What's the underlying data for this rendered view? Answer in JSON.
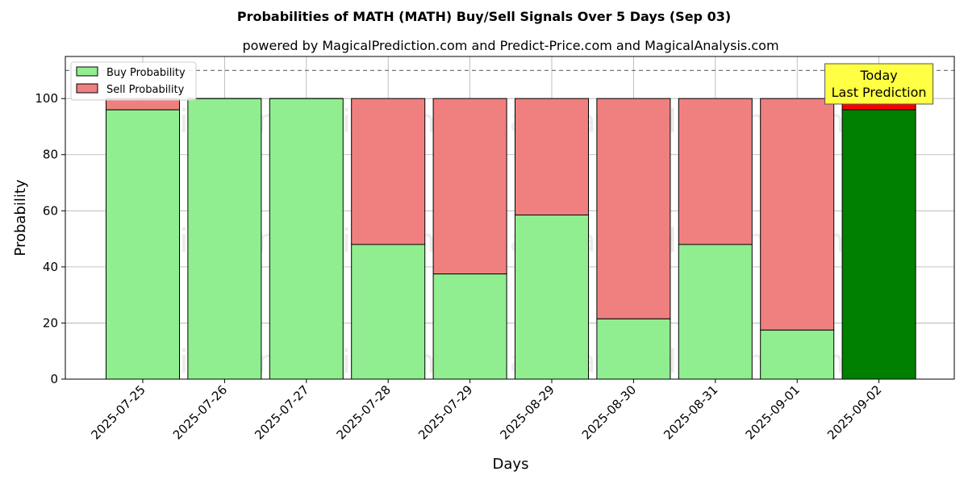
{
  "chart_data": {
    "type": "bar",
    "stacked": true,
    "title": "Probabilities of MATH (MATH) Buy/Sell Signals Over 5 Days (Sep 03)",
    "subtitle": "powered by MagicalPrediction.com and Predict-Price.com and MagicalAnalysis.com",
    "xlabel": "Days",
    "ylabel": "Probability",
    "ylim": [
      0,
      115
    ],
    "yticks": [
      0,
      20,
      40,
      60,
      80,
      100
    ],
    "grid": true,
    "legend_placement": "top-left",
    "categories": [
      "2025-07-25",
      "2025-07-26",
      "2025-07-27",
      "2025-07-28",
      "2025-07-29",
      "2025-08-29",
      "2025-08-30",
      "2025-08-31",
      "2025-09-01",
      "2025-09-02"
    ],
    "series": [
      {
        "name": "Buy Probability",
        "values": [
          96,
          100,
          100,
          48,
          37.5,
          58.5,
          21.5,
          48,
          17.5,
          96
        ]
      },
      {
        "name": "Sell Probability",
        "values": [
          4,
          0,
          0,
          52,
          62.5,
          41.5,
          78.5,
          52,
          82.5,
          4
        ]
      }
    ],
    "reference_line": {
      "value": 110,
      "style": "dashed"
    },
    "annotation": {
      "lines": [
        "Today",
        "Last Prediction"
      ],
      "category": "2025-09-02"
    },
    "watermarks": [
      "MagicalAnalysis.com",
      "MagicalPrediction.com"
    ],
    "colors": {
      "buy": "#90ee90",
      "sell": "#f08080",
      "buy_highlight": "#008000",
      "sell_highlight": "#ff0000",
      "annotation_bg": "#ffff44"
    }
  }
}
